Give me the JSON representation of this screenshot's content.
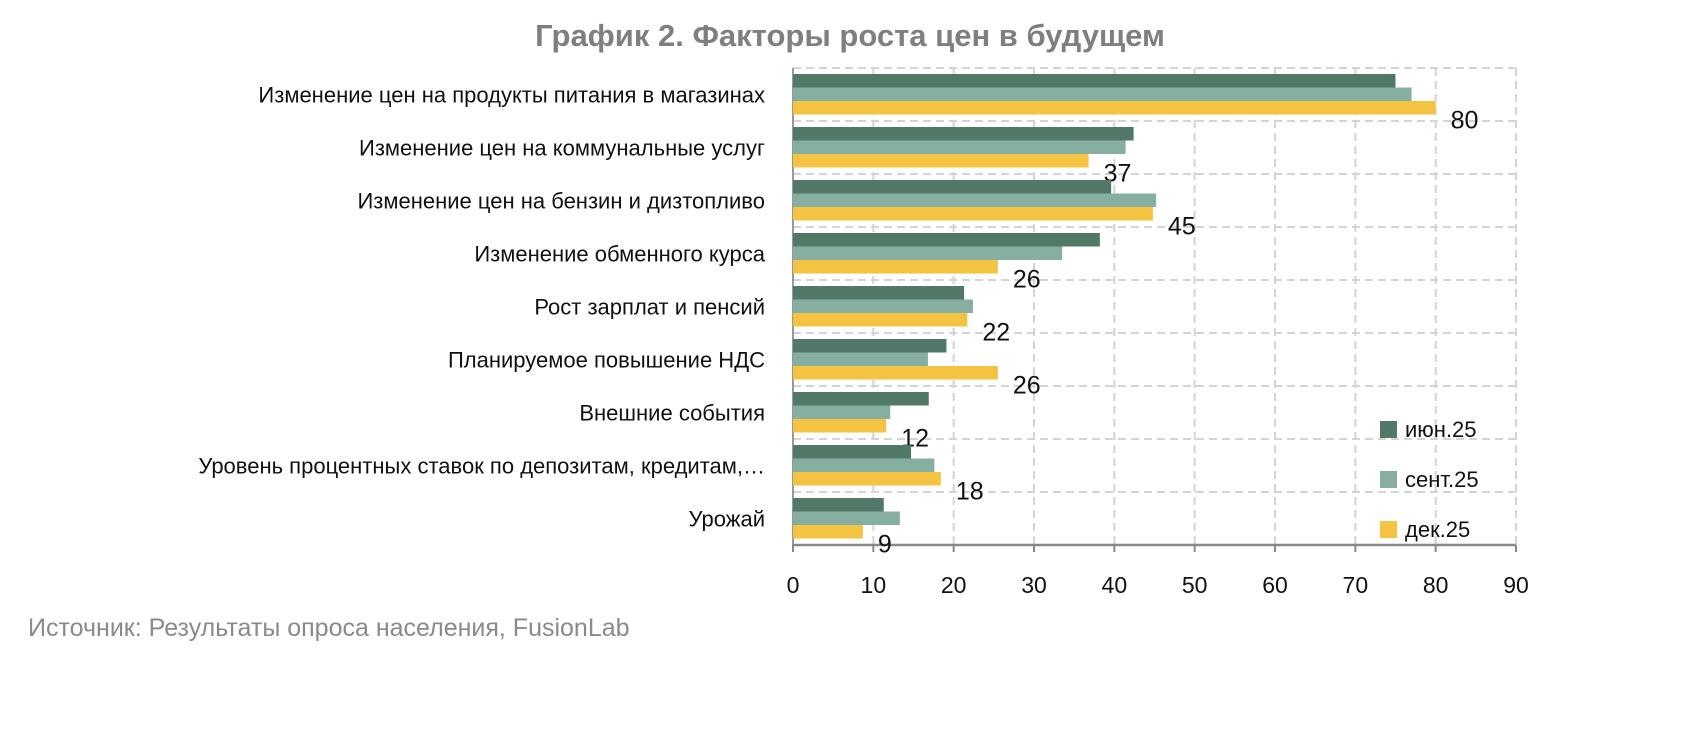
{
  "chart_data": {
    "type": "bar",
    "orientation": "horizontal",
    "title": "График 2. Факторы роста цен в будущем",
    "source": "Источник: Результаты опроса населения, FusionLab",
    "categories": [
      "Изменение цен на продукты питания в магазинах",
      "Изменение цен на коммунальные услуг",
      "Изменение цен на бензин и дизтопливо",
      "Изменение обменного курса",
      "Рост зарплат и пенсий",
      "Планируемое повышение НДС",
      "Внешние события",
      "Уровень процентных ставок по депозитам, кредитам,…",
      "Урожай"
    ],
    "series": [
      {
        "name": "июн.25",
        "color": "#527868",
        "values": [
          75,
          42.4,
          39.6,
          38.2,
          21.3,
          19.1,
          16.9,
          14.7,
          11.3
        ]
      },
      {
        "name": "сент.25",
        "color": "#86afa2",
        "values": [
          77,
          41.4,
          45.2,
          33.5,
          22.4,
          16.8,
          12.1,
          17.6,
          13.3
        ]
      },
      {
        "name": "дек.25",
        "color": "#f5c342",
        "values": [
          80,
          36.8,
          44.8,
          25.5,
          21.7,
          25.5,
          11.6,
          18.4,
          8.7
        ]
      }
    ],
    "data_labels": [
      "80",
      "37",
      "45",
      "26",
      "22",
      "26",
      "12",
      "18",
      "9"
    ],
    "xlim": [
      0,
      90
    ],
    "xticks": [
      "0",
      "10",
      "20",
      "30",
      "40",
      "50",
      "60",
      "70",
      "80",
      "90"
    ],
    "grid": true,
    "legend_position": "bottom-right"
  }
}
